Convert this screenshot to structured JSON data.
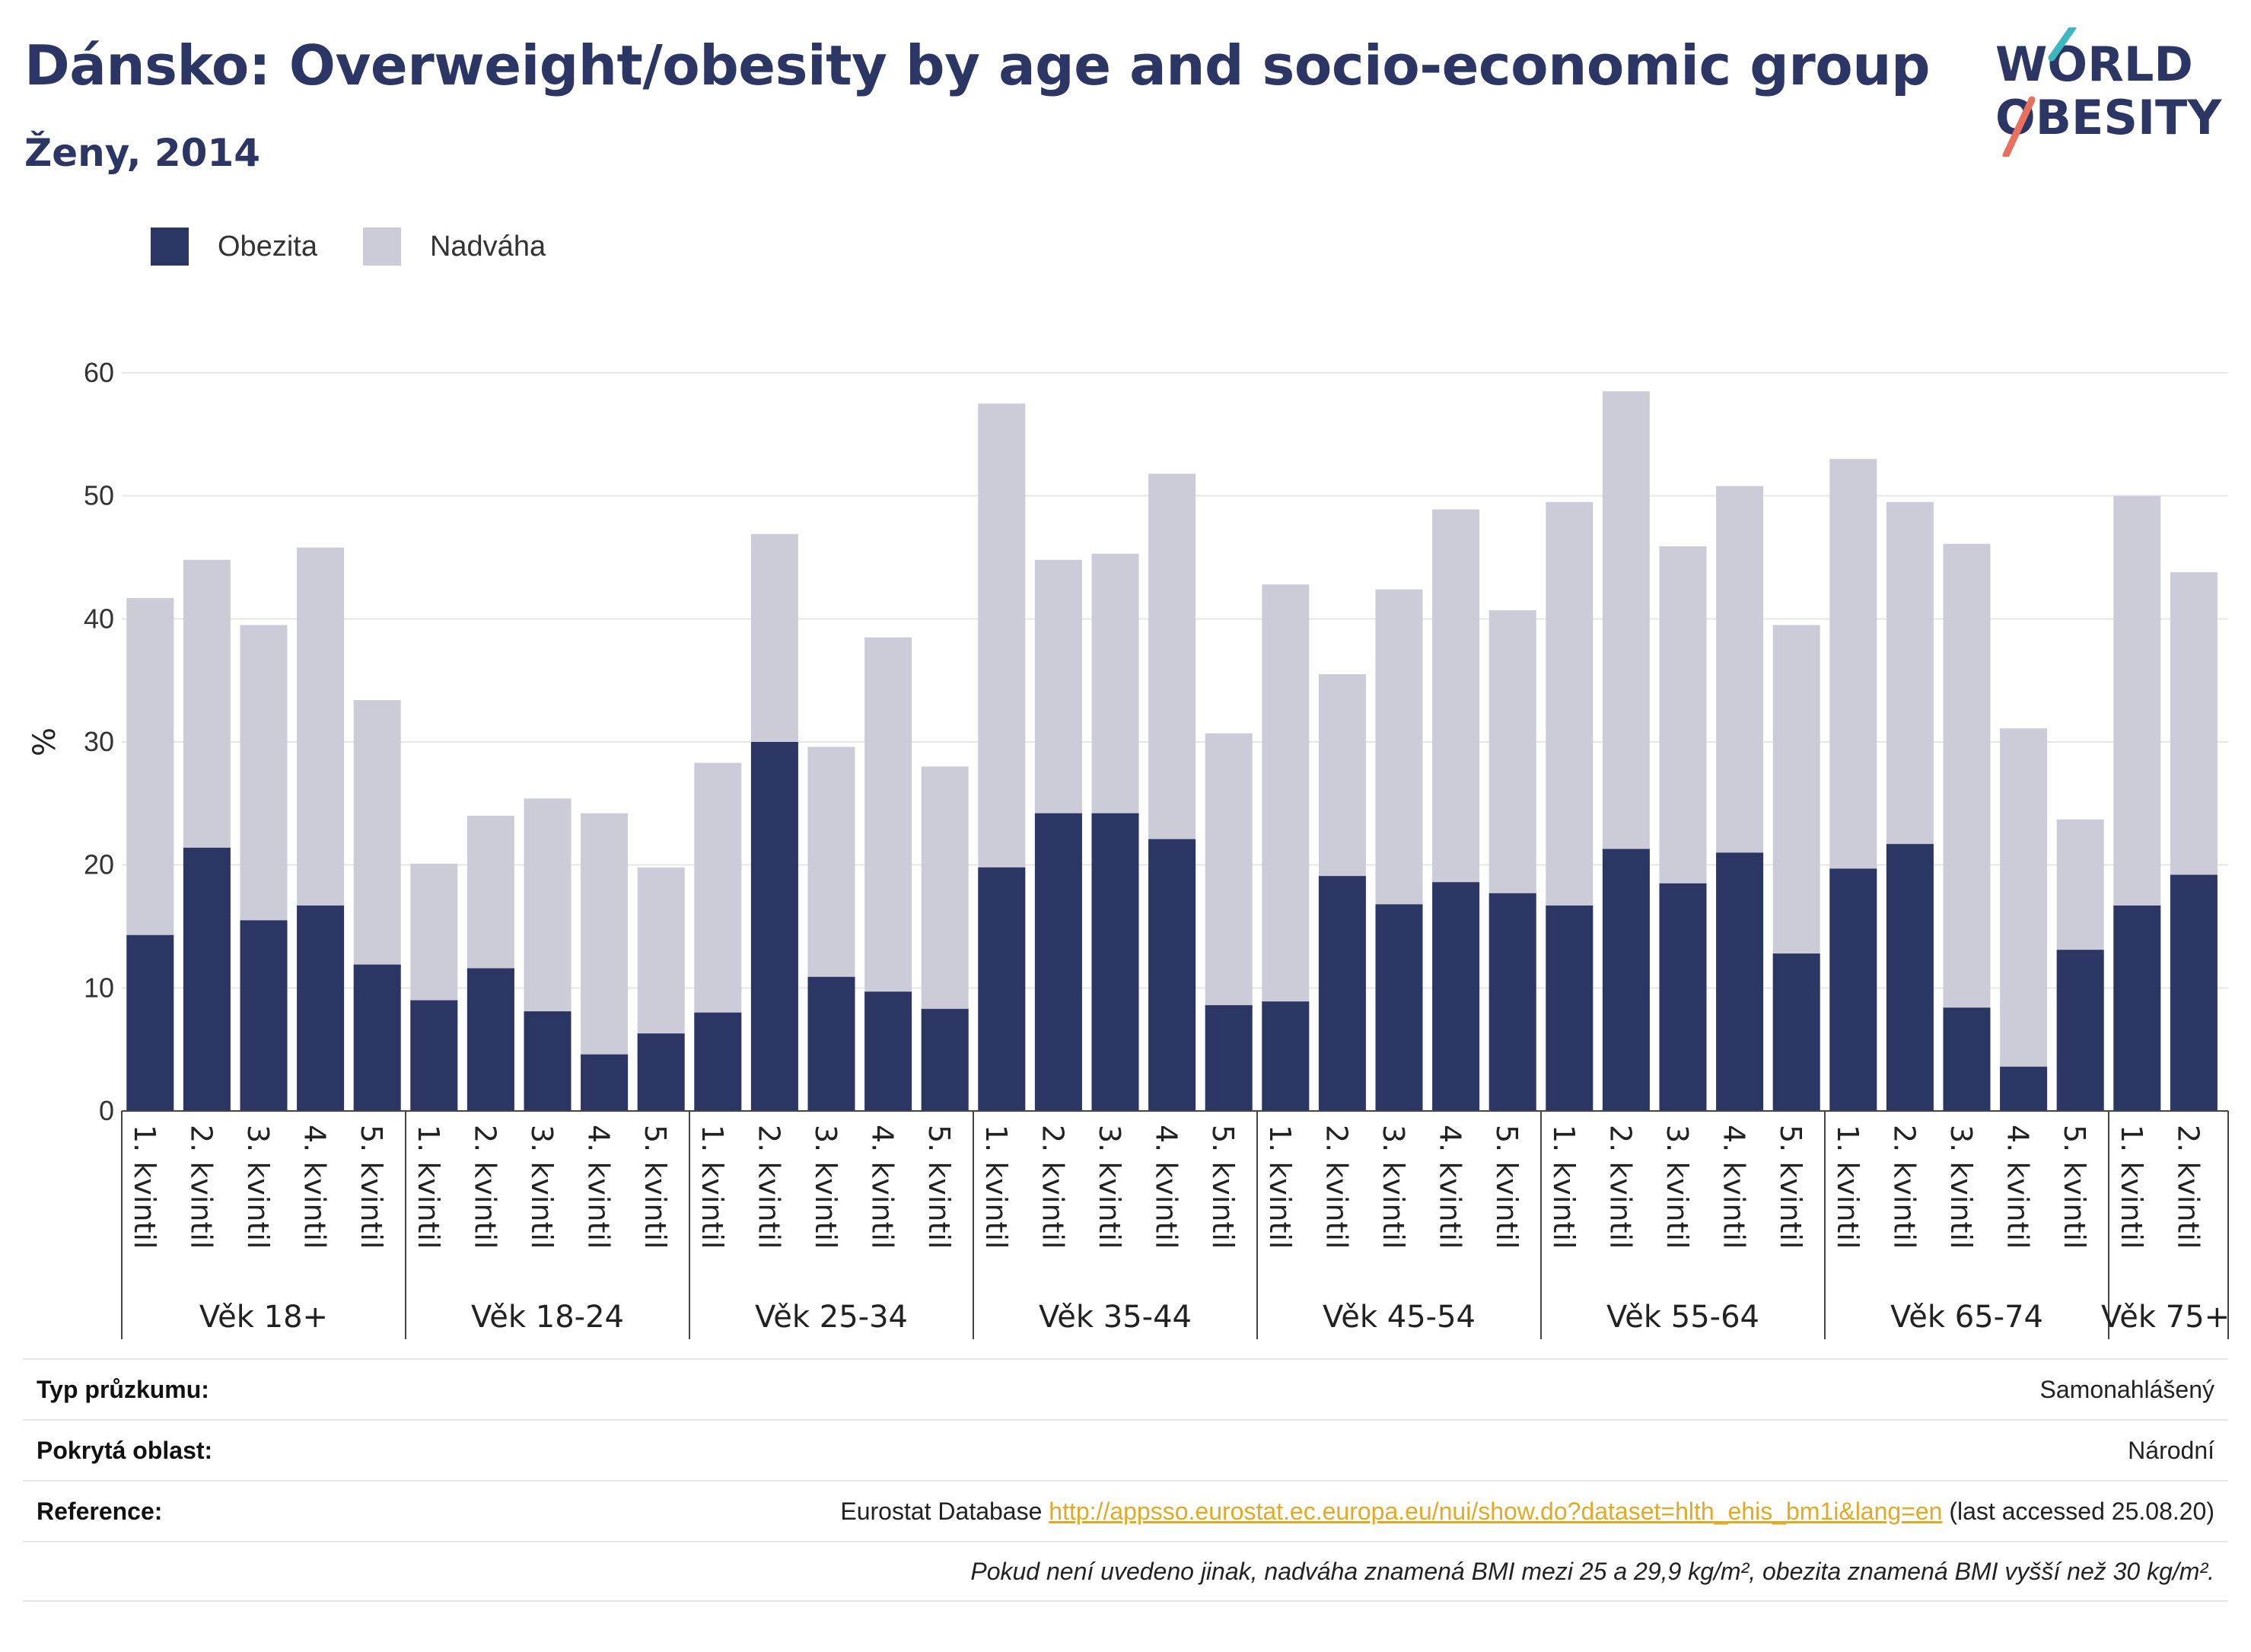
{
  "header": {
    "title": "Dánsko: Overweight/obesity by age and socio-economic group",
    "subtitle": "Ženy, 2014",
    "logo_line1": "WORLD",
    "logo_line2": "OBESITY"
  },
  "legend": {
    "items": [
      {
        "label": "Obezita",
        "color": "#2b3664"
      },
      {
        "label": "Nadváha",
        "color": "#cbccd7"
      }
    ]
  },
  "chart_data": {
    "type": "bar",
    "stacked": true,
    "ylabel": "%",
    "ylim": [
      0,
      60
    ],
    "yticks": [
      0,
      10,
      20,
      30,
      40,
      50,
      60
    ],
    "grid": true,
    "legend_position": "top-left",
    "colors": {
      "obesity": "#2b3664",
      "overweight": "#cbccd7"
    },
    "groups": [
      {
        "label": "Věk 18+",
        "categories": [
          "1. kvintil",
          "2. kvintil",
          "3. kvintil",
          "4. kvintil",
          "5. kvintil"
        ],
        "obesity": [
          14.3,
          21.4,
          15.5,
          16.7,
          11.9
        ],
        "total": [
          41.7,
          44.8,
          39.5,
          45.8,
          33.4
        ]
      },
      {
        "label": "Věk 18-24",
        "categories": [
          "1. kvintil",
          "2. kvintil",
          "3. kvintil",
          "4. kvintil",
          "5. kvintil"
        ],
        "obesity": [
          9.0,
          11.6,
          8.1,
          4.6,
          6.3
        ],
        "total": [
          20.1,
          24.0,
          25.4,
          24.2,
          19.8
        ]
      },
      {
        "label": "Věk 25-34",
        "categories": [
          "1. kvintil",
          "2. kvintil",
          "3. kvintil",
          "4. kvintil",
          "5. kvintil"
        ],
        "obesity": [
          8.0,
          30.0,
          10.9,
          9.7,
          8.3
        ],
        "total": [
          28.3,
          46.9,
          29.6,
          38.5,
          28.0
        ]
      },
      {
        "label": "Věk 35-44",
        "categories": [
          "1. kvintil",
          "2. kvintil",
          "3. kvintil",
          "4. kvintil",
          "5. kvintil"
        ],
        "obesity": [
          19.8,
          24.2,
          24.2,
          22.1,
          8.6
        ],
        "total": [
          57.5,
          44.8,
          45.3,
          51.8,
          30.7
        ]
      },
      {
        "label": "Věk 45-54",
        "categories": [
          "1. kvintil",
          "2. kvintil",
          "3. kvintil",
          "4. kvintil",
          "5. kvintil"
        ],
        "obesity": [
          8.9,
          19.1,
          16.8,
          18.6,
          17.7
        ],
        "total": [
          42.8,
          35.5,
          42.4,
          48.9,
          40.7
        ]
      },
      {
        "label": "Věk 55-64",
        "categories": [
          "1. kvintil",
          "2. kvintil",
          "3. kvintil",
          "4. kvintil",
          "5. kvintil"
        ],
        "obesity": [
          16.7,
          21.3,
          18.5,
          21.0,
          12.8
        ],
        "total": [
          49.5,
          58.5,
          45.9,
          50.8,
          39.5
        ]
      },
      {
        "label": "Věk 65-74",
        "categories": [
          "1. kvintil",
          "2. kvintil",
          "3. kvintil",
          "4. kvintil",
          "5. kvintil"
        ],
        "obesity": [
          19.7,
          21.7,
          8.4,
          3.6,
          13.1
        ],
        "total": [
          53.0,
          49.5,
          46.1,
          31.1,
          23.7
        ]
      },
      {
        "label": "Věk 75+",
        "categories": [
          "1. kvintil",
          "2. kvintil"
        ],
        "obesity": [
          16.7,
          19.2
        ],
        "total": [
          50.0,
          43.8
        ]
      }
    ]
  },
  "info": {
    "survey_type_label": "Typ průzkumu:",
    "survey_type_value": "Samonahlášený",
    "coverage_label": "Pokrytá oblast:",
    "coverage_value": "Národní",
    "reference_label": "Reference:",
    "reference_prefix": "Eurostat Database ",
    "reference_link": "http://appsso.eurostat.ec.europa.eu/nui/show.do?dataset=hlth_ehis_bm1i&lang=en",
    "reference_suffix": " (last accessed 25.08.20)",
    "note": "Pokud není uvedeno jinak, nadváha znamená BMI mezi 25 a 29,9 kg/m², obezita znamená BMI vyšší než 30 kg/m²."
  }
}
